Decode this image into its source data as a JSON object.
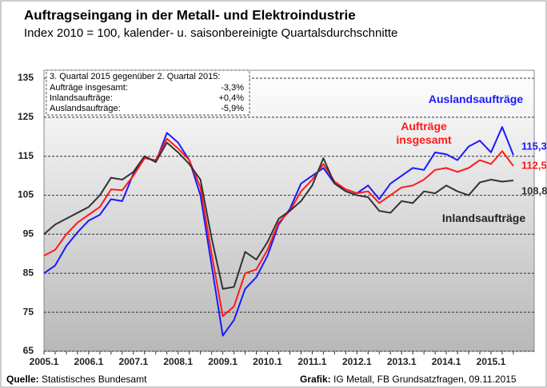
{
  "chart_data": {
    "type": "line",
    "title": "Auftragseingang in der Metall- und Elektroindustrie",
    "subtitle": "Index 2010 = 100, kalender- u. saisonbereinigte Quartalsdurchschnitte",
    "categories": [
      "2005.1",
      null,
      null,
      null,
      "2006.1",
      null,
      null,
      null,
      "2007.1",
      null,
      null,
      null,
      "2008.1",
      null,
      null,
      null,
      "2009.1",
      null,
      null,
      null,
      "2010.1",
      null,
      null,
      null,
      "2011.1",
      null,
      null,
      null,
      "2012.1",
      null,
      null,
      null,
      "2013.1",
      null,
      null,
      null,
      "2014.1",
      null,
      null,
      null,
      "2015.1",
      null,
      null
    ],
    "series": [
      {
        "name": "Auslandsaufträge",
        "color": "#1a1aff",
        "values": [
          85,
          87,
          92,
          95.5,
          98.5,
          100,
          104,
          103.5,
          110.5,
          115,
          113.5,
          121,
          118.5,
          114,
          105,
          87,
          69,
          73,
          81,
          84,
          89.5,
          97.5,
          101.5,
          108,
          110,
          112,
          108,
          106.5,
          105.5,
          107.5,
          104,
          108,
          110,
          112,
          111.5,
          116,
          115.5,
          114,
          117.5,
          119,
          116,
          122.5,
          115.3
        ],
        "value_labels": [
          null,
          null,
          null,
          null,
          null,
          null,
          null,
          null,
          null,
          null,
          null,
          null,
          null,
          null,
          null,
          null,
          null,
          null,
          null,
          null,
          null,
          null,
          null,
          null,
          null,
          null,
          null,
          null,
          null,
          null,
          null,
          null,
          null,
          null,
          null,
          null,
          null,
          null,
          null,
          null,
          null,
          null,
          "115,3"
        ]
      },
      {
        "name": "Aufträge insgesamt",
        "color": "#ff1a1a",
        "values": [
          89.5,
          91,
          95,
          98,
          100,
          102,
          106.5,
          106.3,
          110,
          114.5,
          114,
          119.5,
          117,
          114,
          107,
          90,
          74,
          76.5,
          85,
          86,
          91,
          98,
          101,
          106,
          109,
          113,
          108.5,
          106.5,
          105.5,
          106,
          103,
          105,
          107,
          107.5,
          109,
          111.5,
          112,
          111,
          112,
          114,
          113,
          116.3,
          112.5
        ],
        "value_labels": [
          null,
          null,
          null,
          null,
          null,
          null,
          null,
          null,
          null,
          null,
          null,
          null,
          null,
          null,
          null,
          null,
          null,
          null,
          null,
          null,
          null,
          null,
          null,
          null,
          null,
          null,
          null,
          null,
          null,
          null,
          null,
          null,
          null,
          null,
          null,
          null,
          null,
          null,
          null,
          null,
          null,
          null,
          "112,5"
        ]
      },
      {
        "name": "Inlandsaufträge",
        "color": "#333333",
        "values": [
          95,
          97.5,
          99,
          100.5,
          102,
          105,
          109.5,
          109,
          111,
          115,
          113.5,
          118.5,
          116,
          113,
          109,
          94,
          81,
          81.5,
          90.5,
          88.5,
          93,
          99,
          101,
          103.5,
          107.5,
          114.5,
          108,
          106,
          105,
          104.5,
          101,
          100.5,
          103.5,
          103,
          106,
          105.5,
          107.5,
          106,
          105,
          108.3,
          109,
          108.5,
          108.8
        ],
        "value_labels": [
          null,
          null,
          null,
          null,
          null,
          null,
          null,
          null,
          null,
          null,
          null,
          null,
          null,
          null,
          null,
          null,
          null,
          null,
          null,
          null,
          null,
          null,
          null,
          null,
          null,
          null,
          null,
          null,
          null,
          null,
          null,
          null,
          null,
          null,
          null,
          null,
          null,
          null,
          null,
          null,
          null,
          null,
          "108,8"
        ]
      }
    ],
    "ylim": [
      65,
      135
    ],
    "yticks": [
      65,
      75,
      85,
      95,
      105,
      115,
      125,
      135
    ],
    "grid": true,
    "info_box": {
      "heading": "3. Quartal 2015 gegenüber 2. Quartal 2015:",
      "rows": [
        [
          "Aufträge insgesamt:",
          "-3,3%"
        ],
        [
          "Inlandsaufträge:",
          "+0,4%"
        ],
        [
          "Auslandsaufträge:",
          "-5,9%"
        ]
      ]
    },
    "source": {
      "label": "Quelle:",
      "text": " Statistisches Bundesamt"
    },
    "credit": {
      "label": "Grafik:",
      "text": " IG Metall, FB Grundsatzfragen, 09.11.2015"
    }
  }
}
